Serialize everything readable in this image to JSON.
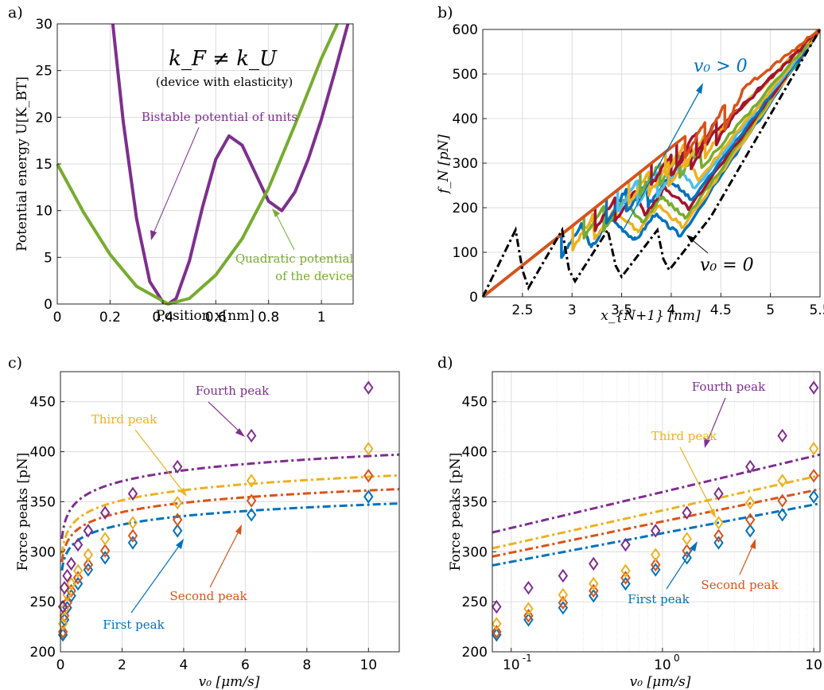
{
  "panels": [
    {
      "letter": "a)"
    },
    {
      "letter": "b)"
    },
    {
      "letter": "c)"
    },
    {
      "letter": "d)"
    }
  ],
  "chart_data": [
    {
      "panel": "a)",
      "type": "line",
      "xlabel": "Position x[nm]",
      "ylabel": "Potential energy U[K_BT]",
      "xlim": [
        0,
        1.12
      ],
      "ylim": [
        0,
        30
      ],
      "xticks": [
        0,
        0.2,
        0.4,
        0.6,
        0.8,
        1
      ],
      "xtick_labels": [
        "0",
        "0.2",
        "0.4",
        "0.6",
        "0.8",
        "1"
      ],
      "yticks": [
        0,
        5,
        10,
        15,
        20,
        25,
        30
      ],
      "ytick_labels": [
        "0",
        "5",
        "10",
        "15",
        "20",
        "25",
        "30"
      ],
      "grid": true,
      "series": [
        {
          "name": "Bistable potential of units",
          "color": "#7E2F8E",
          "x": [
            0.21,
            0.25,
            0.3,
            0.35,
            0.4,
            0.42,
            0.45,
            0.5,
            0.55,
            0.6,
            0.65,
            0.7,
            0.75,
            0.8,
            0.85,
            0.9,
            0.95,
            1.0,
            1.05,
            1.1
          ],
          "y": [
            30,
            19.5,
            9.2,
            2.4,
            0.2,
            0.0,
            0.6,
            4.6,
            10.4,
            15.5,
            18.0,
            17.0,
            14.0,
            11.0,
            10.0,
            12.0,
            15.5,
            19.8,
            24.8,
            30
          ]
        },
        {
          "name": "Quadratic potential of the device",
          "color": "#77AC30",
          "x": [
            0,
            0.1,
            0.2,
            0.3,
            0.42,
            0.5,
            0.6,
            0.7,
            0.8,
            0.9,
            1.0,
            1.06
          ],
          "y": [
            15,
            9.8,
            5.3,
            1.9,
            0.0,
            0.6,
            3.1,
            7.0,
            12.4,
            19.2,
            26.3,
            30
          ]
        }
      ],
      "annotations": [
        "k_F ≠ k_U",
        "(device with elasticity)",
        "Bistable potential of units",
        "Quadratic potential",
        "of the device"
      ]
    },
    {
      "panel": "b)",
      "type": "line",
      "xlabel": "x_{N+1} [nm]",
      "ylabel": "f_N [pN]",
      "xlim": [
        2.1,
        5.5
      ],
      "ylim": [
        0,
        600
      ],
      "xticks": [
        2.5,
        3,
        3.5,
        4,
        4.5,
        5,
        5.5
      ],
      "xtick_labels": [
        "2.5",
        "3",
        "3.5",
        "4",
        "4.5",
        "5",
        "5.5"
      ],
      "yticks": [
        0,
        100,
        200,
        300,
        400,
        500,
        600
      ],
      "ytick_labels": [
        "0",
        "100",
        "200",
        "300",
        "400",
        "500",
        "600"
      ],
      "grid": true,
      "quasistatic_curve": {
        "name": "v0 = 0",
        "x": [
          2.1,
          2.43,
          2.5,
          2.56,
          2.9,
          2.97,
          3.03,
          3.36,
          3.44,
          3.5,
          3.86,
          3.92,
          3.98,
          4.4,
          5.5
        ],
        "y": [
          0,
          150,
          60,
          20,
          150,
          60,
          35,
          150,
          70,
          45,
          150,
          85,
          60,
          180,
          600
        ]
      },
      "series": [
        {
          "color": "#0072BD",
          "peaks": [
            140,
            160,
            175,
            185
          ],
          "offset": 0.0
        },
        {
          "color": "#EDB120",
          "peaks": [
            160,
            180,
            195,
            205
          ],
          "offset": 0.03
        },
        {
          "color": "#77AC30",
          "peaks": [
            180,
            200,
            215,
            225
          ],
          "offset": 0.06
        },
        {
          "color": "#A2142F",
          "peaks": [
            200,
            220,
            235,
            245
          ],
          "offset": 0.09
        },
        {
          "color": "#0072BD",
          "peaks": [
            220,
            240,
            255,
            265
          ],
          "offset": 0.12
        },
        {
          "color": "#4DBEEE",
          "peaks": [
            240,
            260,
            275,
            290
          ],
          "offset": 0.15
        },
        {
          "color": "#EDB120",
          "peaks": [
            260,
            280,
            300,
            310
          ],
          "offset": 0.18
        },
        {
          "color": "#77AC30",
          "peaks": [
            280,
            300,
            320,
            335
          ],
          "offset": 0.21
        },
        {
          "color": "#A2142F",
          "peaks": [
            300,
            320,
            340,
            360
          ],
          "offset": 0.24
        },
        {
          "color": "#EDB120",
          "peaks": [
            325,
            345,
            365,
            385
          ],
          "offset": 0.27
        },
        {
          "color": "#A2142F",
          "peaks": [
            345,
            370,
            395,
            415
          ],
          "offset": 0.3
        },
        {
          "color": "#D95319",
          "peaks": [
            360,
            395,
            430,
            470
          ],
          "offset": 0.33
        }
      ],
      "annotations": [
        "v0 > 0",
        "v0 = 0"
      ]
    },
    {
      "panel": "c)",
      "type": "scatter",
      "xlabel": "v0 [μm/s]",
      "ylabel": "Force peaks [pN]",
      "xscale": "linear",
      "xlim": [
        0,
        11
      ],
      "ylim": [
        200,
        480
      ],
      "xticks": [
        0,
        2,
        4,
        6,
        8,
        10
      ],
      "xtick_labels": [
        "0",
        "2",
        "4",
        "6",
        "8",
        "10"
      ],
      "yticks": [
        200,
        250,
        300,
        350,
        400,
        450
      ],
      "ytick_labels": [
        "200",
        "250",
        "300",
        "350",
        "400",
        "450"
      ],
      "grid": true,
      "x": [
        0.08,
        0.13,
        0.22,
        0.35,
        0.57,
        0.9,
        1.45,
        2.35,
        3.8,
        6.2,
        10
      ],
      "series": [
        {
          "name": "First peak",
          "color": "#0072BD",
          "values": [
            217,
            232,
            244,
            256,
            268,
            282,
            294,
            309,
            321,
            337,
            355
          ]
        },
        {
          "name": "Second peak",
          "color": "#D95319",
          "values": [
            220,
            236,
            249,
            261,
            274,
            287,
            301,
            316,
            332,
            351,
            376
          ]
        },
        {
          "name": "Third peak",
          "color": "#EDB120",
          "values": [
            228,
            243,
            257,
            268,
            281,
            297,
            313,
            329,
            349,
            371,
            403
          ]
        },
        {
          "name": "Fourth peak",
          "color": "#7E2F8E",
          "values": [
            245,
            264,
            276,
            288,
            307,
            321,
            339,
            358,
            385,
            416,
            464
          ]
        }
      ],
      "fits": [
        {
          "color": "#0072BD",
          "a": 318.5,
          "b": 12.4
        },
        {
          "color": "#D95319",
          "a": 330.2,
          "b": 13.5
        },
        {
          "color": "#EDB120",
          "a": 341.3,
          "b": 14.6
        },
        {
          "color": "#7E2F8E",
          "a": 359.7,
          "b": 15.6
        }
      ]
    },
    {
      "panel": "d)",
      "type": "scatter",
      "xlabel": "v0 [μm/s]",
      "ylabel": "Force peaks [pN]",
      "xscale": "log",
      "xlim": [
        0.075,
        11
      ],
      "ylim": [
        200,
        480
      ],
      "xticks": [
        0.1,
        1,
        10
      ],
      "xtick_labels": [
        "10",
        "10",
        "10"
      ],
      "xtick_exponents": [
        "-1",
        "0",
        "1"
      ],
      "yticks": [
        200,
        250,
        300,
        350,
        400,
        450
      ],
      "ytick_labels": [
        "200",
        "250",
        "300",
        "350",
        "400",
        "450"
      ],
      "grid": true,
      "note": "same data and fits as panel c, logarithmic x axis",
      "series_names": [
        "First peak",
        "Second peak",
        "Third peak",
        "Fourth peak"
      ]
    }
  ],
  "labels": {
    "a_title_k": "k_F ≠ k_U",
    "a_subtitle": "(device with elasticity)",
    "a_bistable": "Bistable potential of units",
    "a_quad1": "Quadratic potential",
    "a_quad2": "of the device",
    "a_xlabel": "Position x[nm]",
    "a_ylabel": "Potential energy U[K_BT]",
    "b_xlabel": "x_{N+1} [nm]",
    "b_ylabel": "f_N [pN]",
    "b_vpos": "v₀ > 0",
    "b_vzero": "v₀ = 0",
    "c_xlabel": "v₀ [μm/s]",
    "c_ylabel": "Force peaks [pN]",
    "first": "First peak",
    "second": "Second peak",
    "third": "Third peak",
    "fourth": "Fourth peak"
  }
}
